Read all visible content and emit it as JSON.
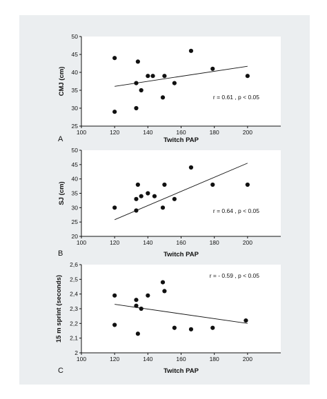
{
  "colors": {
    "background": "#ebeef0",
    "plot": "#ffffff",
    "ink": "#111111"
  },
  "chart_data": [
    {
      "type": "scatter",
      "panel_label": "A",
      "xlabel": "Twitch PAP",
      "ylabel": "CMJ (cm)",
      "xlim": [
        100,
        220
      ],
      "ylim": [
        25,
        50
      ],
      "xticks": [
        "100",
        "120",
        "140",
        "160",
        "180",
        "200"
      ],
      "yticks": [
        "25",
        "30",
        "35",
        "40",
        "45",
        "50"
      ],
      "grid": false,
      "points": [
        {
          "x": 120,
          "y": 44
        },
        {
          "x": 120,
          "y": 29
        },
        {
          "x": 133,
          "y": 37
        },
        {
          "x": 133,
          "y": 30
        },
        {
          "x": 134,
          "y": 43
        },
        {
          "x": 136,
          "y": 35
        },
        {
          "x": 140,
          "y": 39
        },
        {
          "x": 143,
          "y": 39
        },
        {
          "x": 150,
          "y": 39
        },
        {
          "x": 149,
          "y": 33
        },
        {
          "x": 156,
          "y": 37
        },
        {
          "x": 166,
          "y": 46
        },
        {
          "x": 179,
          "y": 41
        },
        {
          "x": 200,
          "y": 39
        }
      ],
      "trendline": {
        "x": [
          120,
          200
        ],
        "y": [
          36.1,
          41.7
        ]
      },
      "annotation": "r = 0.61 , p < 0.05"
    },
    {
      "type": "scatter",
      "panel_label": "B",
      "xlabel": "Twitch PAP",
      "ylabel": "SJ (cm)",
      "xlim": [
        100,
        220
      ],
      "ylim": [
        20,
        50
      ],
      "xticks": [
        "100",
        "120",
        "140",
        "160",
        "180",
        "200"
      ],
      "yticks": [
        "20",
        "25",
        "30",
        "35",
        "40",
        "45",
        "50"
      ],
      "grid": false,
      "points": [
        {
          "x": 120,
          "y": 30
        },
        {
          "x": 133,
          "y": 29
        },
        {
          "x": 133,
          "y": 33
        },
        {
          "x": 134,
          "y": 38
        },
        {
          "x": 136,
          "y": 34
        },
        {
          "x": 140,
          "y": 35
        },
        {
          "x": 144,
          "y": 34
        },
        {
          "x": 149,
          "y": 30
        },
        {
          "x": 150,
          "y": 38
        },
        {
          "x": 156,
          "y": 33
        },
        {
          "x": 166,
          "y": 44
        },
        {
          "x": 179,
          "y": 38
        },
        {
          "x": 200,
          "y": 38
        }
      ],
      "trendline": {
        "x": [
          120,
          200
        ],
        "y": [
          25.8,
          45.5
        ]
      },
      "annotation": "r = 0.64 , p < 0.05"
    },
    {
      "type": "scatter",
      "panel_label": "C",
      "xlabel": "Twitch PAP",
      "ylabel": "15 m sprint (seconds)",
      "xlim": [
        100,
        220
      ],
      "ylim": [
        2.0,
        2.6
      ],
      "xticks": [
        "100",
        "120",
        "140",
        "160",
        "180",
        "200"
      ],
      "yticks": [
        "2",
        "2,1",
        "2,2",
        "2,3",
        "2,4",
        "2,5",
        "2,6"
      ],
      "grid": false,
      "points": [
        {
          "x": 120,
          "y": 2.39
        },
        {
          "x": 120,
          "y": 2.19
        },
        {
          "x": 133,
          "y": 2.36
        },
        {
          "x": 133,
          "y": 2.32
        },
        {
          "x": 134,
          "y": 2.13
        },
        {
          "x": 136,
          "y": 2.3
        },
        {
          "x": 140,
          "y": 2.39
        },
        {
          "x": 149,
          "y": 2.48
        },
        {
          "x": 150,
          "y": 2.42
        },
        {
          "x": 156,
          "y": 2.17
        },
        {
          "x": 166,
          "y": 2.16
        },
        {
          "x": 179,
          "y": 2.17
        },
        {
          "x": 199,
          "y": 2.22
        }
      ],
      "trendline": {
        "x": [
          120,
          200
        ],
        "y": [
          2.33,
          2.2
        ]
      },
      "annotation": "r = - 0.59 , p < 0.05"
    }
  ]
}
